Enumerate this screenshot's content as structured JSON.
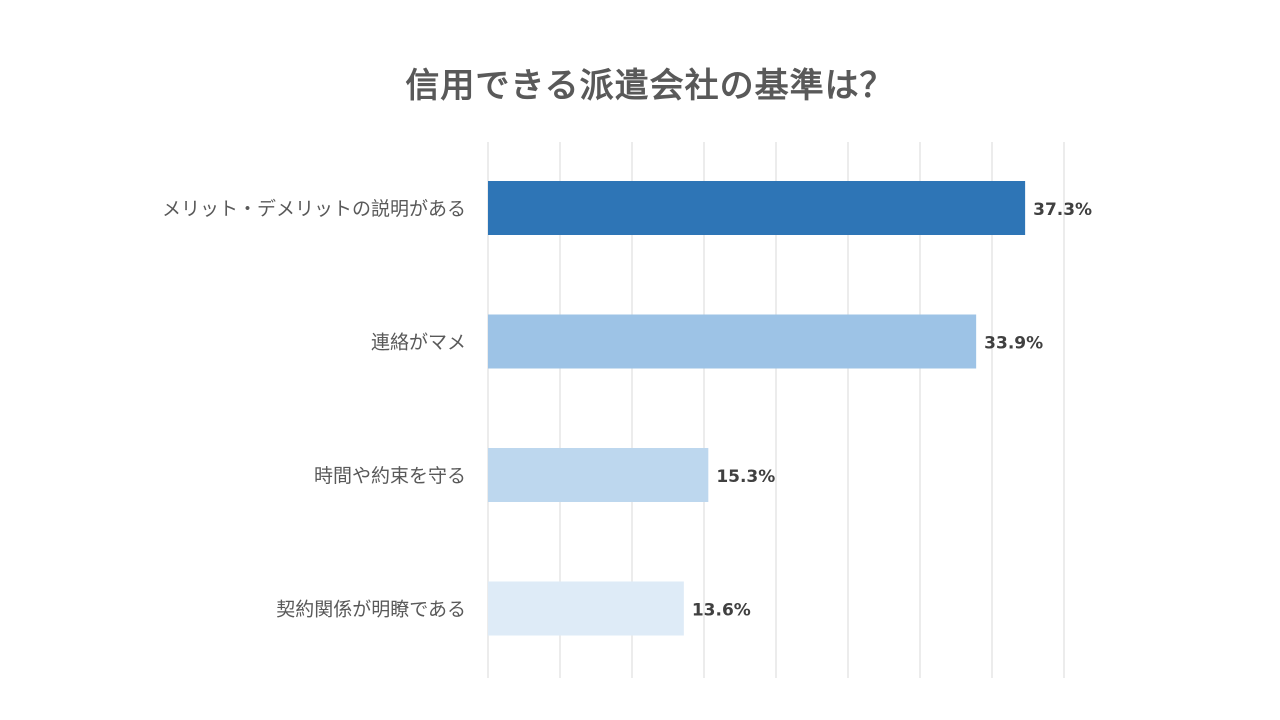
{
  "chart_data": {
    "type": "bar",
    "orientation": "horizontal",
    "title": "信用できる派遣会社の基準は？",
    "categories": [
      "メリット・デメリットの説明がある",
      "連絡がマメ",
      "時間や約束を守る",
      "契約関係が明瞭である"
    ],
    "values": [
      37.3,
      33.9,
      15.3,
      13.6
    ],
    "value_labels": [
      "37.3%",
      "33.9%",
      "15.3%",
      "13.6%"
    ],
    "bar_colors": [
      "#2e75b6",
      "#9dc3e6",
      "#bdd7ee",
      "#deebf7"
    ],
    "xlim": [
      0,
      40
    ],
    "grid": true,
    "gridline_color": "#d9d9d9",
    "xlabel": "",
    "ylabel": "",
    "legend": "none"
  }
}
